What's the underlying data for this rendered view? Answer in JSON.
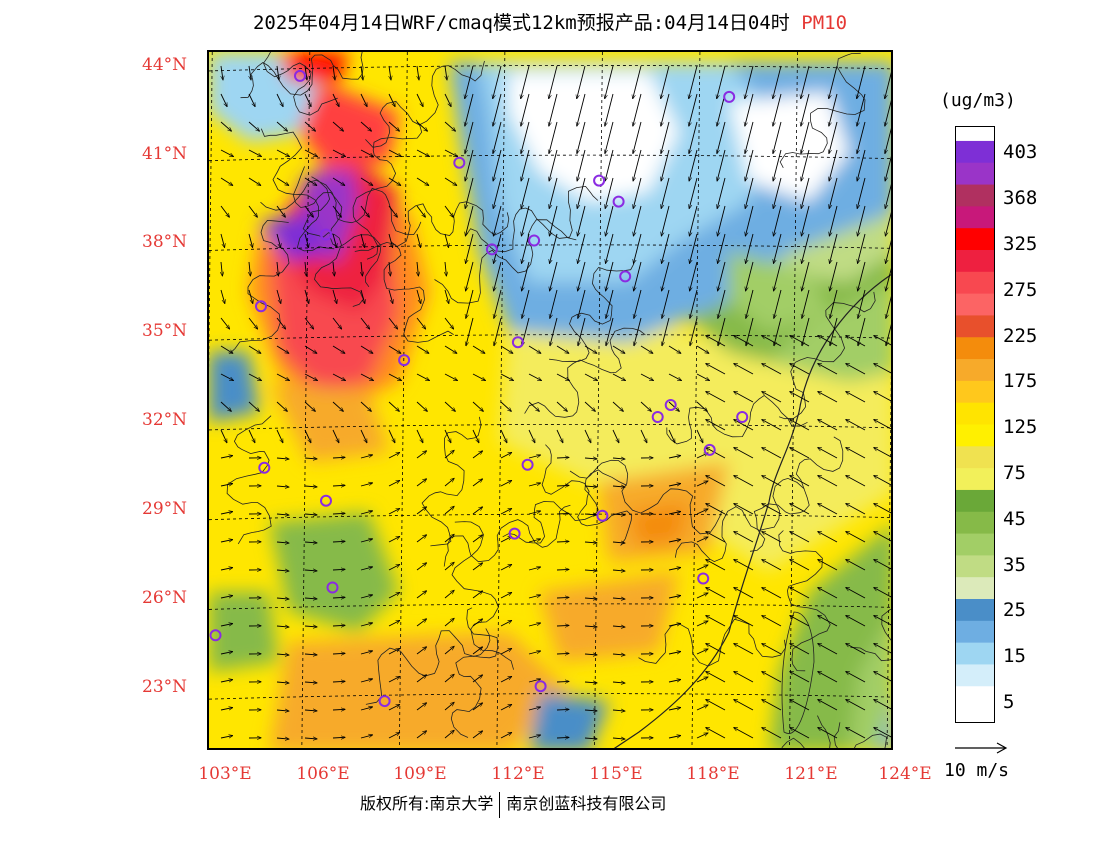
{
  "header": {
    "title_prefix": "2025年04月14日WRF/cmaq模式12km预报产品:04月14日04时",
    "product": "PM10"
  },
  "map": {
    "lat_labels": [
      "44°N",
      "41°N",
      "38°N",
      "35°N",
      "32°N",
      "29°N",
      "26°N",
      "23°N"
    ],
    "lon_labels": [
      "103°E",
      "106°E",
      "109°E",
      "112°E",
      "115°E",
      "118°E",
      "121°E",
      "124°E"
    ],
    "lat_values": [
      44,
      41,
      38,
      35,
      32,
      29,
      26,
      23
    ],
    "lon_values": [
      103,
      106,
      109,
      112,
      115,
      118,
      121,
      124
    ],
    "extent": {
      "lon_min": 102.9,
      "lon_max": 124.0,
      "lat_min": 21.1,
      "lat_max": 44.5
    },
    "stations": [
      [
        105.7,
        43.7
      ],
      [
        118.9,
        43.0
      ],
      [
        110.6,
        40.8
      ],
      [
        114.9,
        40.2
      ],
      [
        115.5,
        39.5
      ],
      [
        106.5,
        38.4
      ],
      [
        111.6,
        37.9
      ],
      [
        112.9,
        38.2
      ],
      [
        115.7,
        37.0
      ],
      [
        104.5,
        36.0
      ],
      [
        112.4,
        34.8
      ],
      [
        108.9,
        34.2
      ],
      [
        117.1,
        32.7
      ],
      [
        116.7,
        32.3
      ],
      [
        119.3,
        32.3
      ],
      [
        104.6,
        30.6
      ],
      [
        112.7,
        30.7
      ],
      [
        118.3,
        31.2
      ],
      [
        106.5,
        29.5
      ],
      [
        115.0,
        29.0
      ],
      [
        112.3,
        28.4
      ],
      [
        106.7,
        26.6
      ],
      [
        118.1,
        26.9
      ],
      [
        103.1,
        25.0
      ],
      [
        108.3,
        22.8
      ],
      [
        113.1,
        23.3
      ]
    ]
  },
  "legend": {
    "unit": "(ug/m3)",
    "labels": [
      "403",
      "368",
      "325",
      "275",
      "225",
      "175",
      "125",
      "75",
      "45",
      "35",
      "25",
      "15",
      "5"
    ],
    "colors": [
      "#7e2fd6",
      "#9a34c8",
      "#b03060",
      "#c8187a",
      "#ff0000",
      "#ee2040",
      "#f84850",
      "#fc6464",
      "#e8502c",
      "#f48c0c",
      "#f7aa2a",
      "#ffc81c",
      "#ffe400",
      "#fff000",
      "#f0e250",
      "#f2f05a",
      "#6aa838",
      "#86ba48",
      "#a2ce66",
      "#c0dc84",
      "#dceaba",
      "#4a8ec8",
      "#6eaee2",
      "#9ed6f2",
      "#d4eefa",
      "#ffffff"
    ],
    "ref_vector": "10 m/s"
  },
  "footer": {
    "left": "版权所有:南京大学",
    "right": "南京创蓝科技有限公司"
  }
}
